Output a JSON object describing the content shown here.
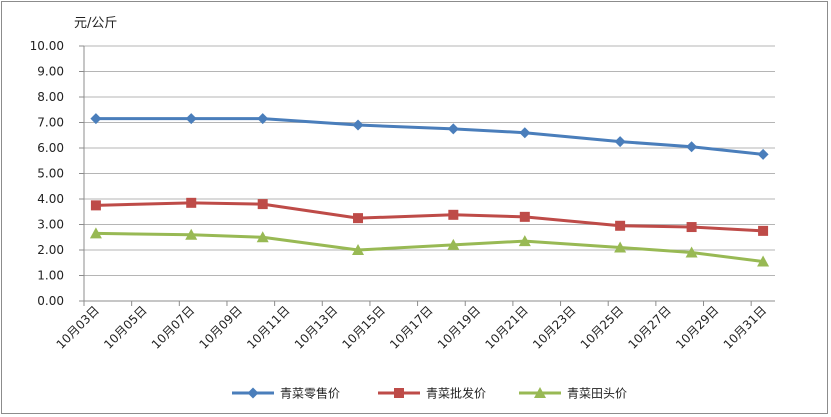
{
  "chart_data": {
    "type": "line",
    "y_unit_label": "元/公斤",
    "ylim": [
      0,
      10
    ],
    "y_ticks": [
      "0.00",
      "1.00",
      "2.00",
      "3.00",
      "4.00",
      "5.00",
      "6.00",
      "7.00",
      "8.00",
      "9.00",
      "10.00"
    ],
    "x_ticks": [
      "10月03日",
      "10月05日",
      "10月07日",
      "10月09日",
      "10月11日",
      "10月13日",
      "10月15日",
      "10月17日",
      "10月19日",
      "10月21日",
      "10月23日",
      "10月25日",
      "10月27日",
      "10月29日",
      "10月31日"
    ],
    "grid": "horizontal",
    "legend_position": "bottom",
    "series": [
      {
        "name": "青菜零售价",
        "color": "#4a7ebb",
        "marker": "diamond",
        "x": [
          "10月03日",
          "10月07日",
          "10月10日",
          "10月14日",
          "10月18日",
          "10月21日",
          "10月25日",
          "10月28日",
          "10月31日"
        ],
        "values": [
          7.15,
          7.15,
          7.15,
          6.9,
          6.75,
          6.6,
          6.25,
          6.05,
          5.75
        ]
      },
      {
        "name": "青菜批发价",
        "color": "#be4b48",
        "marker": "square",
        "x": [
          "10月03日",
          "10月07日",
          "10月10日",
          "10月14日",
          "10月18日",
          "10月21日",
          "10月25日",
          "10月28日",
          "10月31日"
        ],
        "values": [
          3.75,
          3.85,
          3.8,
          3.25,
          3.38,
          3.3,
          2.95,
          2.9,
          2.75
        ]
      },
      {
        "name": "青菜田头价",
        "color": "#98b954",
        "marker": "triangle",
        "x": [
          "10月03日",
          "10月07日",
          "10月10日",
          "10月14日",
          "10月18日",
          "10月21日",
          "10月25日",
          "10月28日",
          "10月31日"
        ],
        "values": [
          2.65,
          2.6,
          2.5,
          2.0,
          2.2,
          2.35,
          2.1,
          1.9,
          1.55
        ]
      }
    ]
  }
}
